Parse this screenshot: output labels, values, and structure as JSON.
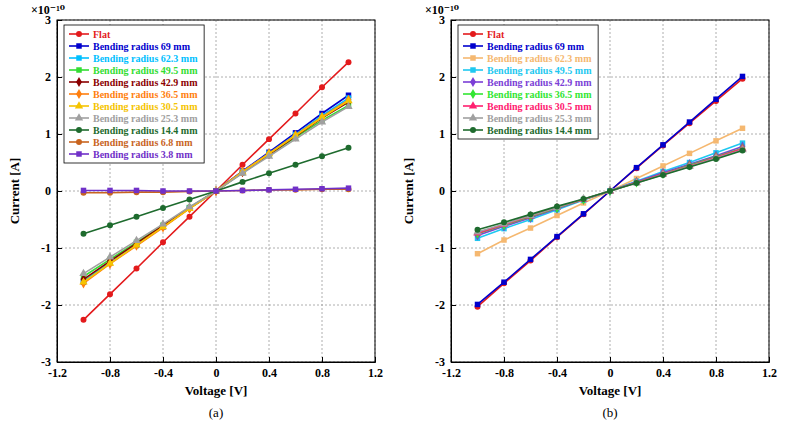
{
  "chart_data": [
    {
      "type": "line",
      "title": "(a)",
      "x_label": "Voltage [V]",
      "y_label": "Current [A]",
      "annotations": [
        "×10⁻¹⁰"
      ],
      "x": [
        -1,
        -0.8,
        -0.6,
        -0.4,
        -0.2,
        0,
        0.2,
        0.4,
        0.6,
        0.8,
        1
      ],
      "xlim": [
        -1.2,
        1.2
      ],
      "xticks": [
        -1.2,
        -0.8,
        -0.4,
        0,
        0.4,
        0.8,
        1.2
      ],
      "ylim": [
        -3,
        3
      ],
      "yticks": [
        -3,
        -2,
        -1,
        0,
        1,
        2,
        3
      ],
      "grid": true,
      "legend": "upper left",
      "series": [
        {
          "name": "Flat",
          "color": "#e31a1c",
          "marker": "circle",
          "values": [
            -2.26,
            -1.81,
            -1.36,
            -0.9,
            -0.45,
            0,
            0.46,
            0.91,
            1.36,
            1.82,
            2.26
          ]
        },
        {
          "name": "Bending radius 69 mm",
          "color": "#0000cd",
          "marker": "square",
          "values": [
            -1.6,
            -1.26,
            -0.95,
            -0.63,
            -0.3,
            0,
            0.35,
            0.68,
            1.02,
            1.36,
            1.68
          ]
        },
        {
          "name": "Bending radius 62.3 mm",
          "color": "#00bfff",
          "marker": "square",
          "values": [
            -1.58,
            -1.25,
            -0.94,
            -0.62,
            -0.3,
            0,
            0.34,
            0.66,
            0.99,
            1.32,
            1.63
          ]
        },
        {
          "name": "Bending radius 49.5 mm",
          "color": "#33dd33",
          "marker": "square",
          "values": [
            -1.5,
            -1.2,
            -0.9,
            -0.6,
            -0.29,
            0,
            0.32,
            0.63,
            0.94,
            1.24,
            1.5
          ]
        },
        {
          "name": "Bending radius 42.9 mm",
          "color": "#8b0000",
          "marker": "diamond",
          "values": [
            -1.55,
            -1.23,
            -0.92,
            -0.61,
            -0.3,
            0,
            0.33,
            0.64,
            0.96,
            1.28,
            1.56
          ]
        },
        {
          "name": "Bending radius 36.5 mm",
          "color": "#ff7f0e",
          "marker": "diamond",
          "values": [
            -1.62,
            -1.28,
            -0.96,
            -0.64,
            -0.31,
            0,
            0.34,
            0.66,
            0.98,
            1.3,
            1.6
          ]
        },
        {
          "name": "Bending radius 30.5 mm",
          "color": "#f5c400",
          "marker": "triangle",
          "values": [
            -1.6,
            -1.27,
            -0.95,
            -0.63,
            -0.31,
            0,
            0.33,
            0.65,
            0.97,
            1.29,
            1.58
          ]
        },
        {
          "name": "Bending radius 25.3 mm",
          "color": "#a0a0a0",
          "marker": "triangle",
          "values": [
            -1.45,
            -1.16,
            -0.87,
            -0.58,
            -0.28,
            0,
            0.31,
            0.61,
            0.91,
            1.21,
            1.48
          ]
        },
        {
          "name": "Bending radius 14.4 mm",
          "color": "#1e6b2e",
          "marker": "circle",
          "values": [
            -0.75,
            -0.6,
            -0.45,
            -0.3,
            -0.15,
            0,
            0.16,
            0.31,
            0.46,
            0.61,
            0.76
          ]
        },
        {
          "name": "Bending radius 6.8 mm",
          "color": "#c8641e",
          "marker": "circle",
          "values": [
            -0.03,
            -0.03,
            -0.02,
            -0.02,
            -0.01,
            0,
            0.01,
            0.02,
            0.02,
            0.03,
            0.03
          ]
        },
        {
          "name": "Bending radius 3.8 mm",
          "color": "#7030c8",
          "marker": "square",
          "values": [
            0.01,
            0.01,
            0.01,
            0.0,
            0.0,
            0,
            0.01,
            0.02,
            0.03,
            0.04,
            0.05
          ]
        }
      ]
    },
    {
      "type": "line",
      "title": "(b)",
      "x_label": "Voltage [V]",
      "y_label": "Current [A]",
      "annotations": [
        "×10⁻¹⁰"
      ],
      "x": [
        -1,
        -0.8,
        -0.6,
        -0.4,
        -0.2,
        0,
        0.2,
        0.4,
        0.6,
        0.8,
        1
      ],
      "xlim": [
        -1.2,
        1.2
      ],
      "xticks": [
        -1.2,
        -0.8,
        -0.4,
        0,
        0.4,
        0.8,
        1.2
      ],
      "ylim": [
        -3,
        3
      ],
      "yticks": [
        -3,
        -2,
        -1,
        0,
        1,
        2,
        3
      ],
      "grid": true,
      "legend": "upper left",
      "series": [
        {
          "name": "Flat",
          "color": "#e31a1c",
          "marker": "circle",
          "values": [
            -2.03,
            -1.62,
            -1.22,
            -0.81,
            -0.41,
            0,
            0.4,
            0.8,
            1.19,
            1.58,
            1.97
          ]
        },
        {
          "name": "Bending radius 69 mm",
          "color": "#0000cd",
          "marker": "square",
          "values": [
            -1.99,
            -1.6,
            -1.2,
            -0.8,
            -0.4,
            0,
            0.41,
            0.81,
            1.21,
            1.61,
            2.01
          ]
        },
        {
          "name": "Bending radius 62.3 mm",
          "color": "#f5b870",
          "marker": "square",
          "values": [
            -1.1,
            -0.86,
            -0.65,
            -0.43,
            -0.21,
            0,
            0.22,
            0.44,
            0.66,
            0.88,
            1.1
          ]
        },
        {
          "name": "Bending radius 49.5 mm",
          "color": "#1ec8f0",
          "marker": "square",
          "values": [
            -0.83,
            -0.66,
            -0.5,
            -0.33,
            -0.16,
            0,
            0.17,
            0.34,
            0.5,
            0.67,
            0.84
          ]
        },
        {
          "name": "Bending radius 42.9 mm",
          "color": "#7b3fd6",
          "marker": "diamond",
          "values": [
            -0.78,
            -0.62,
            -0.47,
            -0.31,
            -0.15,
            0,
            0.16,
            0.32,
            0.47,
            0.62,
            0.78
          ]
        },
        {
          "name": "Bending radius 36.5 mm",
          "color": "#32e632",
          "marker": "diamond",
          "values": [
            -0.75,
            -0.6,
            -0.45,
            -0.3,
            -0.15,
            0,
            0.15,
            0.3,
            0.45,
            0.6,
            0.75
          ]
        },
        {
          "name": "Bending radius 30.5 mm",
          "color": "#ff2070",
          "marker": "triangle",
          "values": [
            -0.74,
            -0.59,
            -0.44,
            -0.29,
            -0.15,
            0,
            0.15,
            0.3,
            0.44,
            0.59,
            0.74
          ]
        },
        {
          "name": "Bending radius 25.3 mm",
          "color": "#a0a0a0",
          "marker": "triangle",
          "values": [
            -0.72,
            -0.58,
            -0.43,
            -0.29,
            -0.14,
            0,
            0.14,
            0.29,
            0.43,
            0.58,
            0.72
          ]
        },
        {
          "name": "Bending radius 14.4 mm",
          "color": "#1e6b2e",
          "marker": "circle",
          "values": [
            -0.68,
            -0.55,
            -0.41,
            -0.27,
            -0.14,
            0,
            0.14,
            0.28,
            0.42,
            0.56,
            0.71
          ]
        }
      ]
    }
  ]
}
